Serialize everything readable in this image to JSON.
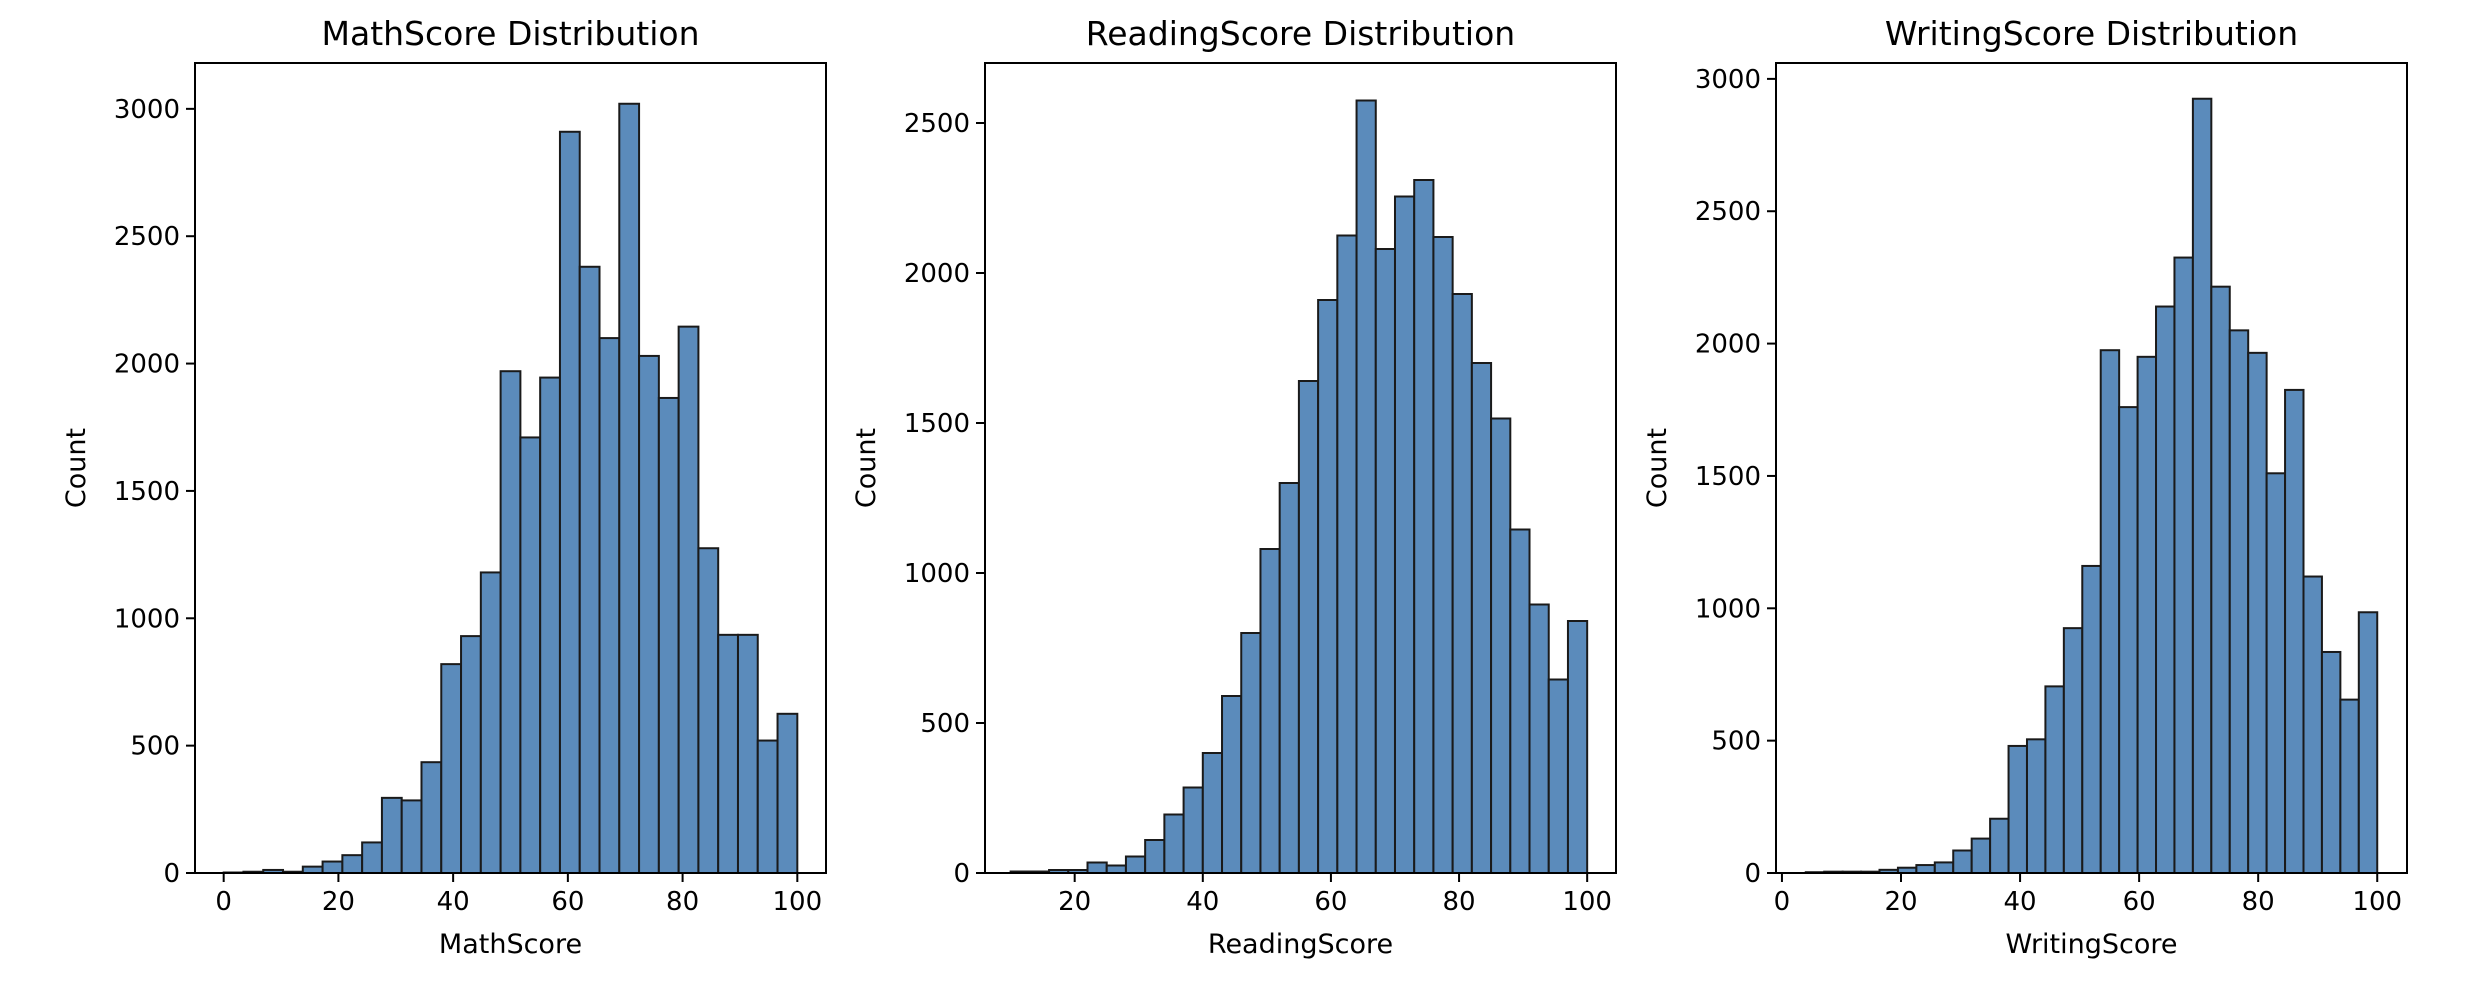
{
  "colors": {
    "bar_fill": "#5b8bbb",
    "bar_edge": "#1a1a1a",
    "axis": "#000000",
    "background": "#ffffff"
  },
  "chart_data": [
    {
      "type": "bar",
      "title": "MathScore Distribution",
      "xlabel": "MathScore",
      "ylabel": "Count",
      "grid": false,
      "xlim": [
        -5,
        105
      ],
      "ylim": [
        0,
        3180
      ],
      "xticks": [
        0,
        20,
        40,
        60,
        80,
        100
      ],
      "yticks": [
        0,
        500,
        1000,
        1500,
        2000,
        2500,
        3000
      ],
      "x_range": [
        0,
        100
      ],
      "values": [
        2,
        5,
        12,
        5,
        25,
        45,
        70,
        120,
        295,
        285,
        435,
        820,
        930,
        1180,
        1970,
        1710,
        1945,
        2910,
        2380,
        2100,
        3020,
        2030,
        1865,
        2145,
        1275,
        935,
        935,
        520,
        625
      ]
    },
    {
      "type": "bar",
      "title": "ReadingScore Distribution",
      "xlabel": "ReadingScore",
      "ylabel": "Count",
      "grid": false,
      "xlim": [
        6,
        104.5
      ],
      "ylim": [
        0,
        2700
      ],
      "xticks": [
        20,
        40,
        60,
        80,
        100
      ],
      "yticks": [
        0,
        500,
        1000,
        1500,
        2000,
        2500
      ],
      "x_range": [
        10,
        100
      ],
      "values": [
        5,
        5,
        10,
        10,
        35,
        25,
        55,
        110,
        195,
        285,
        400,
        590,
        800,
        1080,
        1300,
        1640,
        1910,
        2125,
        2575,
        2080,
        2255,
        2310,
        2120,
        1930,
        1700,
        1515,
        1145,
        895,
        645,
        840
      ]
    },
    {
      "type": "bar",
      "title": "WritingScore Distribution",
      "xlabel": "WritingScore",
      "ylabel": "Count",
      "grid": false,
      "xlim": [
        -1,
        105
      ],
      "ylim": [
        0,
        3060
      ],
      "xticks": [
        0,
        20,
        40,
        60,
        80,
        100
      ],
      "yticks": [
        0,
        500,
        1000,
        1500,
        2000,
        2500,
        3000
      ],
      "x_range": [
        4,
        100
      ],
      "values": [
        3,
        5,
        5,
        5,
        12,
        20,
        30,
        40,
        85,
        130,
        205,
        480,
        505,
        705,
        925,
        1160,
        1975,
        1760,
        1950,
        2140,
        2325,
        2925,
        2215,
        2050,
        1965,
        1510,
        1825,
        1120,
        835,
        655,
        985
      ]
    }
  ]
}
